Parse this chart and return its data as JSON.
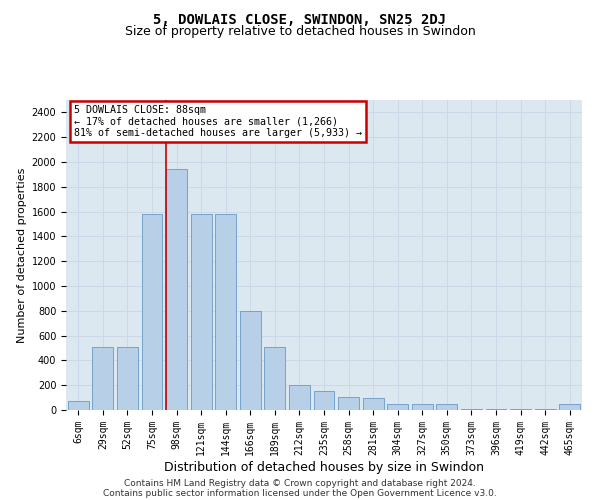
{
  "title": "5, DOWLAIS CLOSE, SWINDON, SN25 2DJ",
  "subtitle": "Size of property relative to detached houses in Swindon",
  "xlabel": "Distribution of detached houses by size in Swindon",
  "ylabel": "Number of detached properties",
  "footer_line1": "Contains HM Land Registry data © Crown copyright and database right 2024.",
  "footer_line2": "Contains public sector information licensed under the Open Government Licence v3.0.",
  "bar_color": "#b8cfe8",
  "bar_edge_color": "#6899c8",
  "annotation_box_color": "#cc0000",
  "annotation_text_line1": "5 DOWLAIS CLOSE: 88sqm",
  "annotation_text_line2": "← 17% of detached houses are smaller (1,266)",
  "annotation_text_line3": "81% of semi-detached houses are larger (5,933) →",
  "property_line_color": "#cc0000",
  "categories": [
    "6sqm",
    "29sqm",
    "52sqm",
    "75sqm",
    "98sqm",
    "121sqm",
    "144sqm",
    "166sqm",
    "189sqm",
    "212sqm",
    "235sqm",
    "258sqm",
    "281sqm",
    "304sqm",
    "327sqm",
    "350sqm",
    "373sqm",
    "396sqm",
    "419sqm",
    "442sqm",
    "465sqm"
  ],
  "values": [
    75,
    510,
    510,
    1580,
    1940,
    1580,
    1580,
    800,
    510,
    200,
    155,
    105,
    100,
    52,
    52,
    52,
    10,
    10,
    10,
    10,
    52
  ],
  "ylim": [
    0,
    2500
  ],
  "yticks": [
    0,
    200,
    400,
    600,
    800,
    1000,
    1200,
    1400,
    1600,
    1800,
    2000,
    2200,
    2400
  ],
  "grid_color": "#ccd8e8",
  "plot_bg_color": "#dce8f0",
  "title_fontsize": 10,
  "subtitle_fontsize": 9,
  "xlabel_fontsize": 9,
  "ylabel_fontsize": 8,
  "tick_fontsize": 7,
  "footer_fontsize": 6.5,
  "red_line_x": 3.58
}
